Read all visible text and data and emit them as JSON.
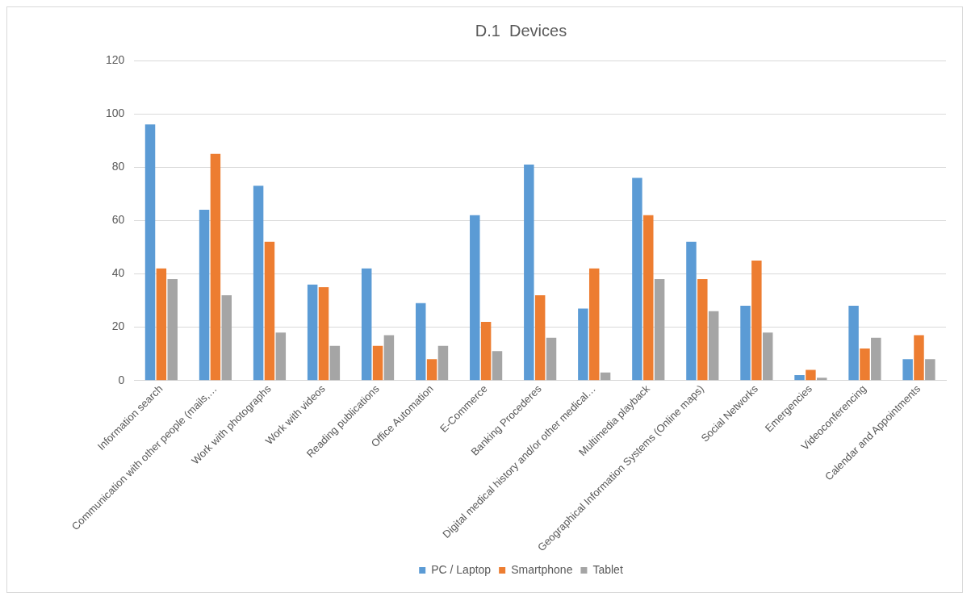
{
  "chart_data": {
    "type": "bar",
    "title": "D.1  Devices",
    "categories": [
      "Information search",
      "Communication with other people (mails,…",
      "Work with photographs",
      "Work with videos",
      "Reading publications",
      "Office Automation",
      "E-Commerce",
      "Banking Procederes",
      "Digital medical history and/or other medical…",
      "Multimedia playback",
      "Geographical Information Systems (Online maps)",
      "Social Networks",
      "Emergencies",
      "Videoconferencing",
      "Calendar and Appointments"
    ],
    "series": [
      {
        "name": "PC / Laptop",
        "color": "#5b9bd5",
        "values": [
          96,
          64,
          73,
          36,
          42,
          29,
          62,
          81,
          27,
          76,
          52,
          28,
          2,
          28,
          8
        ]
      },
      {
        "name": "Smartphone",
        "color": "#ed7d31",
        "values": [
          42,
          85,
          52,
          35,
          13,
          8,
          22,
          32,
          42,
          62,
          38,
          45,
          4,
          12,
          17
        ]
      },
      {
        "name": "Tablet",
        "color": "#a5a5a5",
        "values": [
          38,
          32,
          18,
          13,
          17,
          13,
          11,
          16,
          3,
          38,
          26,
          18,
          1,
          16,
          8
        ]
      }
    ],
    "ylim": [
      0,
      120
    ],
    "yticks": [
      0,
      20,
      40,
      60,
      80,
      100,
      120
    ],
    "grid": "y",
    "legend": "bottom"
  }
}
